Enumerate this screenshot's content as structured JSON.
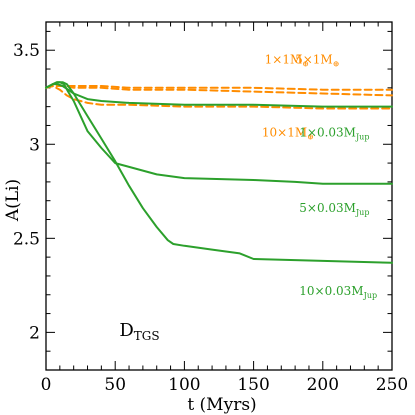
{
  "chart_data": {
    "type": "line",
    "xlabel": "t (Myrs)",
    "ylabel": "A(Li)",
    "xlim": [
      0,
      250
    ],
    "ylim": [
      1.8,
      3.65
    ],
    "xticks": [
      0,
      50,
      100,
      150,
      200,
      250
    ],
    "yticks": [
      2,
      2.5,
      3,
      3.5
    ],
    "xtick_labels": [
      "0",
      "50",
      "100",
      "150",
      "200",
      "250"
    ],
    "ytick_labels": [
      "2",
      "2.5",
      "3",
      "3.5"
    ],
    "grid": false,
    "colors": {
      "earth": "#ff8c00",
      "jupiter": "#2ca02c"
    },
    "series": [
      {
        "group": "earth",
        "style": "dashed",
        "x": [
          0,
          5,
          10,
          15,
          20,
          40,
          60,
          100,
          150,
          200,
          250
        ],
        "y": [
          3.3,
          3.31,
          3.31,
          3.31,
          3.31,
          3.31,
          3.3,
          3.3,
          3.3,
          3.29,
          3.29
        ]
      },
      {
        "group": "earth",
        "style": "dashed",
        "x": [
          0,
          5,
          10,
          15,
          20,
          40,
          60,
          100,
          150,
          200,
          250
        ],
        "y": [
          3.3,
          3.31,
          3.31,
          3.31,
          3.3,
          3.3,
          3.29,
          3.29,
          3.28,
          3.27,
          3.26
        ]
      },
      {
        "group": "earth",
        "style": "dashed",
        "x": [
          0,
          5,
          10,
          15,
          20,
          25,
          30,
          40,
          60,
          100,
          150,
          200,
          250
        ],
        "y": [
          3.3,
          3.31,
          3.29,
          3.26,
          3.24,
          3.23,
          3.22,
          3.21,
          3.21,
          3.2,
          3.2,
          3.19,
          3.19
        ]
      },
      {
        "group": "jupiter",
        "style": "solid",
        "x": [
          0,
          5,
          8,
          12,
          16,
          20,
          30,
          40,
          60,
          100,
          150,
          200,
          250
        ],
        "y": [
          3.3,
          3.32,
          3.32,
          3.31,
          3.29,
          3.27,
          3.24,
          3.23,
          3.22,
          3.21,
          3.21,
          3.2,
          3.2
        ]
      },
      {
        "group": "jupiter",
        "style": "solid",
        "x": [
          0,
          5,
          8,
          10,
          13,
          16,
          20,
          25,
          30,
          40,
          50,
          55,
          70,
          80,
          100,
          150,
          180,
          200,
          250
        ],
        "y": [
          3.3,
          3.32,
          3.33,
          3.33,
          3.32,
          3.28,
          3.23,
          3.15,
          3.07,
          2.98,
          2.9,
          2.89,
          2.86,
          2.84,
          2.82,
          2.81,
          2.8,
          2.79,
          2.79
        ]
      },
      {
        "group": "jupiter",
        "style": "solid",
        "x": [
          0,
          5,
          8,
          10,
          12,
          15,
          20,
          30,
          40,
          50,
          60,
          70,
          80,
          88,
          92,
          100,
          120,
          140,
          150,
          200,
          250
        ],
        "y": [
          3.3,
          3.32,
          3.33,
          3.33,
          3.33,
          3.32,
          3.27,
          3.15,
          3.03,
          2.91,
          2.78,
          2.66,
          2.56,
          2.49,
          2.47,
          2.46,
          2.44,
          2.42,
          2.39,
          2.38,
          2.37
        ]
      }
    ],
    "annotations": [
      {
        "id": "e1",
        "group": "earth",
        "main": "1×1M",
        "sub": "⊕",
        "tx": 158,
        "ty": 3.43
      },
      {
        "id": "e5",
        "group": "earth",
        "main": "5×1M",
        "sub": "⊕",
        "tx": 180,
        "ty": 3.43
      },
      {
        "id": "e10",
        "group": "earth",
        "main": "10×1M",
        "sub": "⊕",
        "tx": 156,
        "ty": 3.04
      },
      {
        "id": "j1",
        "group": "jupiter",
        "main": "1×0.03M",
        "sub": "Jup",
        "tx": 183,
        "ty": 3.04
      },
      {
        "id": "j5",
        "group": "jupiter",
        "main": "5×0.03M",
        "sub": "Jup",
        "tx": 183,
        "ty": 2.64
      },
      {
        "id": "j10",
        "group": "jupiter",
        "main": "10×0.03M",
        "sub": "Jup",
        "tx": 183,
        "ty": 2.2
      }
    ],
    "panel_label": {
      "main": "D",
      "sub": "TGS",
      "tx": 53,
      "ty": 1.98
    }
  }
}
